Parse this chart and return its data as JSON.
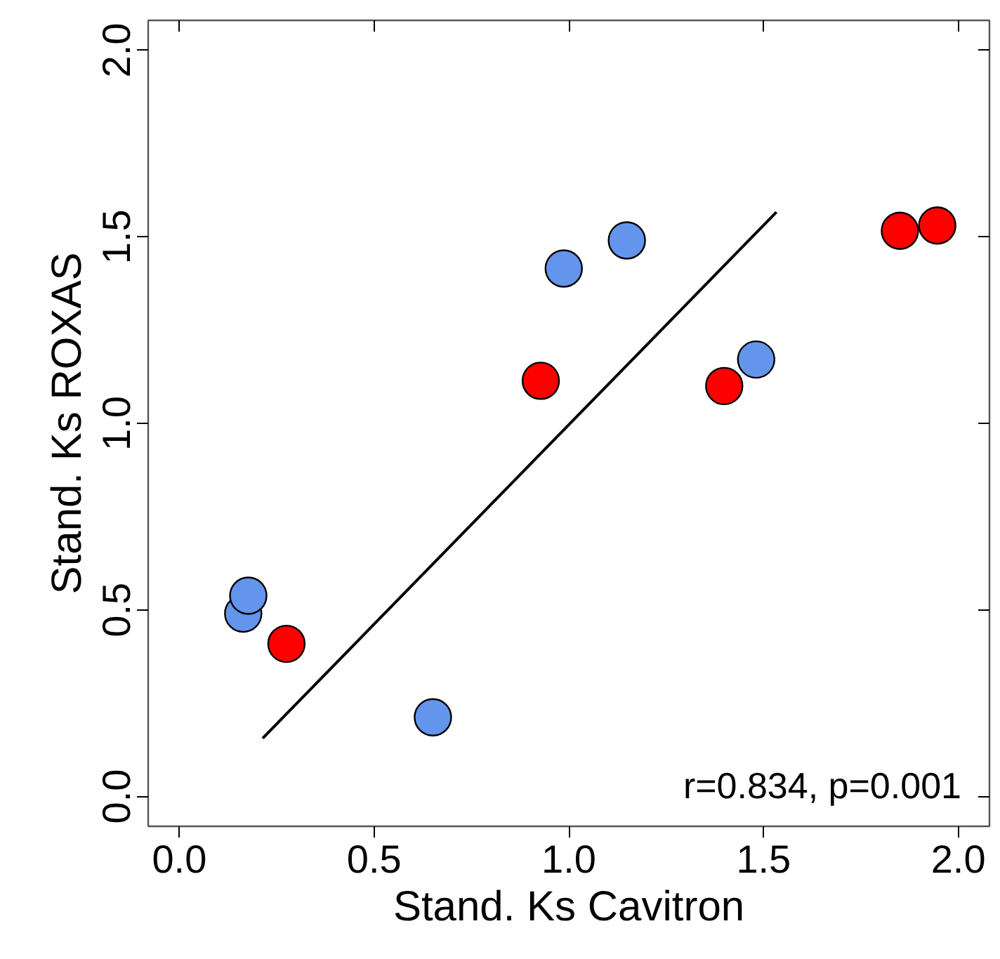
{
  "chart_data": {
    "type": "scatter",
    "xlabel": "Stand. Ks Cavitron",
    "ylabel": "Stand. Ks ROXAS",
    "xlim": [
      -0.08,
      2.08
    ],
    "ylim": [
      -0.08,
      2.08
    ],
    "xticks": [
      {
        "value": 0,
        "label": "0.0"
      },
      0.5,
      {
        "value": 1,
        "label": "1.0"
      },
      1.5,
      {
        "value": 2,
        "label": "2.0"
      }
    ],
    "yticks": [
      {
        "value": 0,
        "label": "0.0"
      },
      0.5,
      {
        "value": 1,
        "label": "1.0"
      },
      1.5,
      {
        "value": 2,
        "label": "2.0"
      }
    ],
    "grid": false,
    "annotations": [
      "r=0.834, p=0.001"
    ],
    "series": [
      {
        "marker": "circle",
        "color": "#6495ed",
        "x": [
          0.164,
          0.177,
          0.651,
          0.987,
          1.149,
          1.481
        ],
        "values": [
          0.49,
          0.538,
          0.212,
          1.415,
          1.49,
          1.171
        ]
      },
      {
        "marker": "circle",
        "color": "#ff0000",
        "x": [
          0.275,
          0.928,
          1.399,
          1.85,
          1.946
        ],
        "values": [
          0.409,
          1.114,
          1.1,
          1.516,
          1.53
        ]
      },
      {
        "type": "line",
        "color": "#000000",
        "x": [
          0.214,
          1.533
        ],
        "values": [
          0.156,
          1.566
        ]
      }
    ]
  }
}
